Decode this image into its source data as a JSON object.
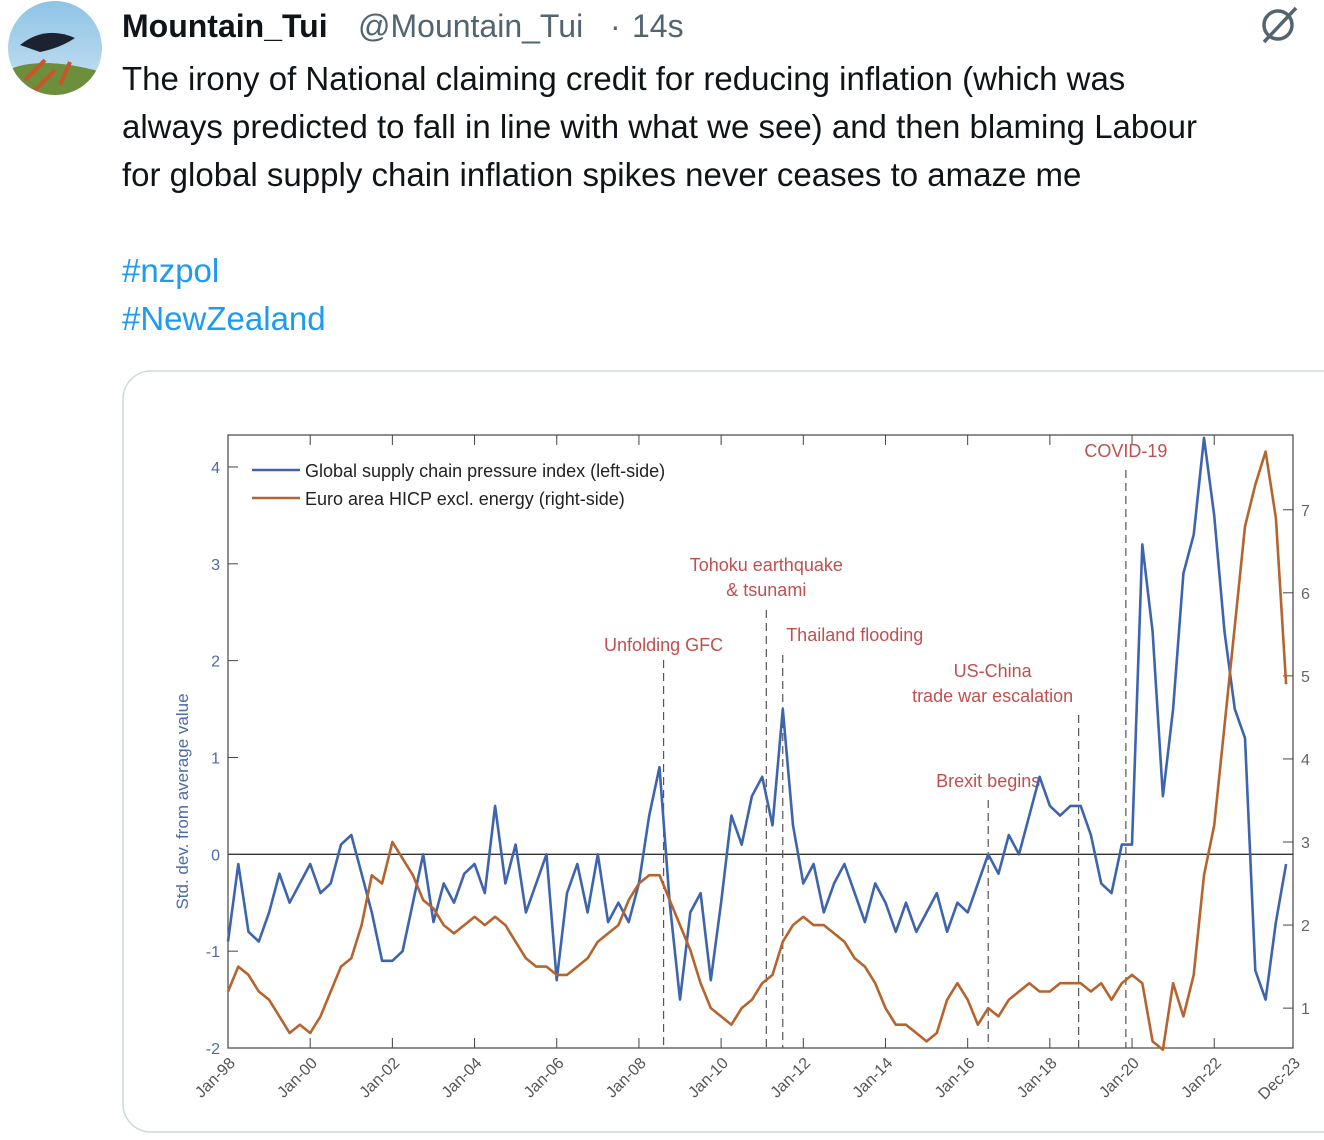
{
  "tweet": {
    "name": "Mountain_Tui",
    "handle": "@Mountain_Tui",
    "separator": "·",
    "time": "14s",
    "text_lines": [
      "The irony of National claiming credit for reducing inflation (which was",
      "always predicted to fall in line with what we see) and then blaming Labour",
      "for global supply chain inflation spikes never ceases to amaze me"
    ],
    "hashtags": [
      "#nzpol",
      "#NewZealand"
    ]
  },
  "chart_data": {
    "type": "line",
    "y_label": "Std. dev. from average value",
    "x": [
      1998,
      1998.25,
      1998.5,
      1998.75,
      1999,
      1999.25,
      1999.5,
      1999.75,
      2000,
      2000.25,
      2000.5,
      2000.75,
      2001,
      2001.25,
      2001.5,
      2001.75,
      2002,
      2002.25,
      2002.5,
      2002.75,
      2003,
      2003.25,
      2003.5,
      2003.75,
      2004,
      2004.25,
      2004.5,
      2004.75,
      2005,
      2005.25,
      2005.5,
      2005.75,
      2006,
      2006.25,
      2006.5,
      2006.75,
      2007,
      2007.25,
      2007.5,
      2007.75,
      2008,
      2008.25,
      2008.5,
      2008.75,
      2009,
      2009.25,
      2009.5,
      2009.75,
      2010,
      2010.25,
      2010.5,
      2010.75,
      2011,
      2011.25,
      2011.5,
      2011.75,
      2012,
      2012.25,
      2012.5,
      2012.75,
      2013,
      2013.25,
      2013.5,
      2013.75,
      2014,
      2014.25,
      2014.5,
      2014.75,
      2015,
      2015.25,
      2015.5,
      2015.75,
      2016,
      2016.25,
      2016.5,
      2016.75,
      2017,
      2017.25,
      2017.5,
      2017.75,
      2018,
      2018.25,
      2018.5,
      2018.75,
      2019,
      2019.25,
      2019.5,
      2019.75,
      2020,
      2020.25,
      2020.5,
      2020.75,
      2021,
      2021.25,
      2021.5,
      2021.75,
      2022,
      2022.25,
      2022.5,
      2022.75,
      2023,
      2023.25,
      2023.5,
      2023.75
    ],
    "series": [
      {
        "name": "Global supply chain pressure index (left-side)",
        "color": "#3d64ad",
        "values": [
          -0.9,
          -0.1,
          -0.8,
          -0.9,
          -0.6,
          -0.2,
          -0.5,
          -0.3,
          -0.1,
          -0.4,
          -0.3,
          0.1,
          0.2,
          -0.2,
          -0.6,
          -1.1,
          -1.1,
          -1.0,
          -0.5,
          0.0,
          -0.7,
          -0.3,
          -0.5,
          -0.2,
          -0.1,
          -0.4,
          0.5,
          -0.3,
          0.1,
          -0.6,
          -0.3,
          0.0,
          -1.3,
          -0.4,
          -0.1,
          -0.6,
          0.0,
          -0.7,
          -0.5,
          -0.7,
          -0.3,
          0.4,
          0.9,
          -0.5,
          -1.5,
          -0.6,
          -0.4,
          -1.3,
          -0.5,
          0.4,
          0.1,
          0.6,
          0.8,
          0.3,
          1.5,
          0.3,
          -0.3,
          -0.1,
          -0.6,
          -0.3,
          -0.1,
          -0.4,
          -0.7,
          -0.3,
          -0.5,
          -0.8,
          -0.5,
          -0.8,
          -0.6,
          -0.4,
          -0.8,
          -0.5,
          -0.6,
          -0.3,
          0.0,
          -0.2,
          0.2,
          0.0,
          0.4,
          0.8,
          0.5,
          0.4,
          0.5,
          0.5,
          0.2,
          -0.3,
          -0.4,
          0.1,
          0.1,
          3.2,
          2.3,
          0.6,
          1.5,
          2.9,
          3.3,
          4.3,
          3.5,
          2.3,
          1.5,
          1.2,
          -1.2,
          -1.5,
          -0.7,
          -0.1
        ]
      },
      {
        "name": "Euro area HICP excl. energy (right-side)",
        "color": "#b5642e",
        "axis": "y2",
        "values": [
          1.2,
          1.5,
          1.4,
          1.2,
          1.1,
          0.9,
          0.7,
          0.8,
          0.7,
          0.9,
          1.2,
          1.5,
          1.6,
          2.0,
          2.6,
          2.5,
          3.0,
          2.8,
          2.6,
          2.3,
          2.2,
          2.0,
          1.9,
          2.0,
          2.1,
          2.0,
          2.1,
          2.0,
          1.8,
          1.6,
          1.5,
          1.5,
          1.4,
          1.4,
          1.5,
          1.6,
          1.8,
          1.9,
          2.0,
          2.3,
          2.5,
          2.6,
          2.6,
          2.3,
          2.0,
          1.7,
          1.3,
          1.0,
          0.9,
          0.8,
          1.0,
          1.1,
          1.3,
          1.4,
          1.8,
          2.0,
          2.1,
          2.0,
          2.0,
          1.9,
          1.8,
          1.6,
          1.5,
          1.3,
          1.0,
          0.8,
          0.8,
          0.7,
          0.6,
          0.7,
          1.1,
          1.3,
          1.1,
          0.8,
          1.0,
          0.9,
          1.1,
          1.2,
          1.3,
          1.2,
          1.2,
          1.3,
          1.3,
          1.3,
          1.2,
          1.3,
          1.1,
          1.3,
          1.4,
          1.3,
          0.6,
          0.5,
          1.3,
          0.9,
          1.4,
          2.6,
          3.2,
          4.4,
          5.6,
          6.8,
          7.3,
          7.7,
          6.9,
          4.9
        ]
      }
    ],
    "xlim": [
      1998,
      2023.917
    ],
    "xticks": [
      {
        "value": 1998,
        "label": "Jan-98"
      },
      {
        "value": 2000,
        "label": "Jan-00"
      },
      {
        "value": 2002,
        "label": "Jan-02"
      },
      {
        "value": 2004,
        "label": "Jan-04"
      },
      {
        "value": 2006,
        "label": "Jan-06"
      },
      {
        "value": 2008,
        "label": "Jan-08"
      },
      {
        "value": 2010,
        "label": "Jan-10"
      },
      {
        "value": 2012,
        "label": "Jan-12"
      },
      {
        "value": 2014,
        "label": "Jan-14"
      },
      {
        "value": 2016,
        "label": "Jan-16"
      },
      {
        "value": 2018,
        "label": "Jan-18"
      },
      {
        "value": 2020,
        "label": "Jan-20"
      },
      {
        "value": 2022,
        "label": "Jan-22"
      },
      {
        "value": 2023.917,
        "label": "Dec-23"
      }
    ],
    "ylim": [
      -2,
      4.33
    ],
    "yticks": [
      -2,
      -1,
      0,
      1,
      2,
      3,
      4
    ],
    "y2lim": [
      0.52,
      7.9
    ],
    "y2ticks": [
      1,
      2,
      3,
      4,
      5,
      6,
      7
    ],
    "legend": "upper left",
    "annotations": [
      {
        "lines": [
          "Unfolding GFC"
        ],
        "x": 2008.6
      },
      {
        "lines": [
          "Tohoku earthquake",
          "& tsunami"
        ],
        "x": 2011.1
      },
      {
        "lines": [
          "Thailand flooding"
        ],
        "x": 2011.5
      },
      {
        "lines": [
          "Brexit begins"
        ],
        "x": 2016.5
      },
      {
        "lines": [
          "US-China",
          "trade war escalation"
        ],
        "x": 2018.7
      },
      {
        "lines": [
          "COVID-19"
        ],
        "x": 2019.85
      }
    ],
    "annotation_color": "#c0504d"
  }
}
